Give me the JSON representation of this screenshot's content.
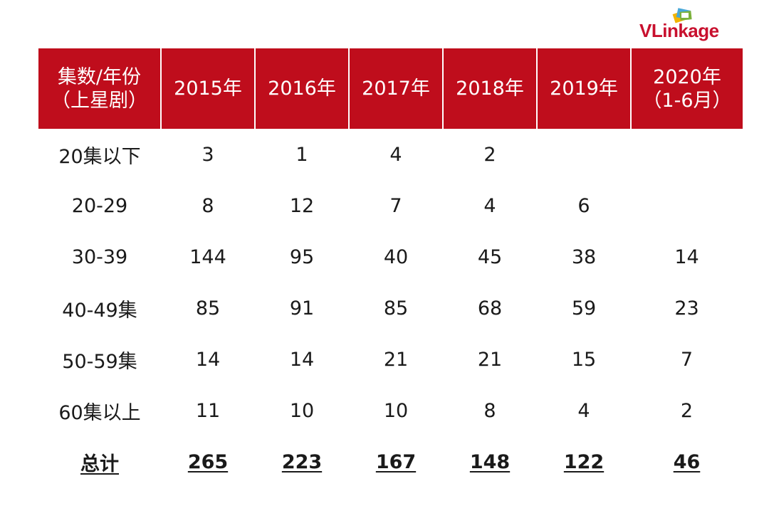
{
  "logo": {
    "text_v": "V",
    "text_rest": "Linkage"
  },
  "chart_data": {
    "type": "table",
    "header": {
      "row_label": [
        "集数/年份",
        "（上星剧）"
      ],
      "columns": [
        [
          "2015年"
        ],
        [
          "2016年"
        ],
        [
          "2017年"
        ],
        [
          "2018年"
        ],
        [
          "2019年"
        ],
        [
          "2020年",
          "（1-6月）"
        ]
      ]
    },
    "rows": [
      {
        "label": "20集以下",
        "values": [
          "3",
          "1",
          "4",
          "2",
          "",
          ""
        ]
      },
      {
        "label": "20-29",
        "values": [
          "8",
          "12",
          "7",
          "4",
          "6",
          ""
        ]
      },
      {
        "label": "30-39",
        "values": [
          "144",
          "95",
          "40",
          "45",
          "38",
          "14"
        ]
      },
      {
        "label": "40-49集",
        "values": [
          "85",
          "91",
          "85",
          "68",
          "59",
          "23"
        ]
      },
      {
        "label": "50-59集",
        "values": [
          "14",
          "14",
          "21",
          "21",
          "15",
          "7"
        ]
      },
      {
        "label": "60集以上",
        "values": [
          "11",
          "10",
          "10",
          "8",
          "4",
          "2"
        ]
      }
    ],
    "total": {
      "label": "总计",
      "values": [
        "265",
        "223",
        "167",
        "148",
        "122",
        "46"
      ]
    },
    "colors": {
      "header_bg": "#bf0d1c",
      "header_text": "#ffffff",
      "logo": "#c8102e"
    }
  }
}
